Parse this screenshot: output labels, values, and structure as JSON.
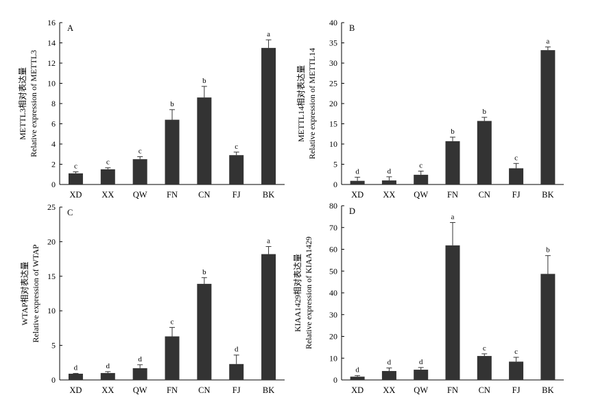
{
  "chart_data": [
    {
      "type": "bar",
      "panel_label": "A",
      "categories": [
        "XD",
        "XX",
        "QW",
        "FN",
        "CN",
        "FJ",
        "BK"
      ],
      "values": [
        1.1,
        1.5,
        2.5,
        6.4,
        8.6,
        2.9,
        13.5
      ],
      "errors": [
        0.15,
        0.15,
        0.25,
        1.0,
        1.1,
        0.3,
        0.8
      ],
      "significance": [
        "c",
        "c",
        "c",
        "b",
        "b",
        "c",
        "a"
      ],
      "ylabel": [
        "METTL3相对表达量",
        "Relative expression of METTL3"
      ],
      "ylim": [
        0,
        16
      ],
      "yticks": [
        0,
        2,
        4,
        6,
        8,
        10,
        12,
        14,
        16
      ]
    },
    {
      "type": "bar",
      "panel_label": "B",
      "categories": [
        "XD",
        "XX",
        "QW",
        "FN",
        "CN",
        "FJ",
        "BK"
      ],
      "values": [
        0.9,
        1.0,
        2.4,
        10.7,
        15.7,
        4.0,
        33.2
      ],
      "errors": [
        0.9,
        0.9,
        0.9,
        1.0,
        0.9,
        1.2,
        0.8
      ],
      "significance": [
        "d",
        "d",
        "c",
        "b",
        "b",
        "c",
        "a"
      ],
      "ylabel": [
        "METTL14相对表达量",
        "Relative expression of METTL14"
      ],
      "ylim": [
        0,
        40
      ],
      "yticks": [
        0,
        5,
        10,
        15,
        20,
        25,
        30,
        35,
        40
      ]
    },
    {
      "type": "bar",
      "panel_label": "C",
      "categories": [
        "XD",
        "XX",
        "QW",
        "FN",
        "CN",
        "FJ",
        "BK"
      ],
      "values": [
        0.9,
        1.0,
        1.7,
        6.3,
        13.9,
        2.3,
        18.2
      ],
      "errors": [
        0.05,
        0.2,
        0.5,
        1.3,
        0.9,
        1.3,
        1.1
      ],
      "significance": [
        "d",
        "d",
        "d",
        "c",
        "b",
        "d",
        "a"
      ],
      "ylabel": [
        "WTAP相对表达量",
        "Relative expression of WTAP"
      ],
      "ylim": [
        0,
        25
      ],
      "yticks": [
        0,
        5,
        10,
        15,
        20,
        25
      ]
    },
    {
      "type": "bar",
      "panel_label": "D",
      "categories": [
        "XD",
        "XX",
        "QW",
        "FN",
        "CN",
        "FJ",
        "BK"
      ],
      "values": [
        1.5,
        4.1,
        4.7,
        61.8,
        11.0,
        8.4,
        48.7
      ],
      "errors": [
        0.5,
        1.4,
        1.0,
        10.5,
        1.0,
        2.0,
        8.4
      ],
      "significance": [
        "d",
        "d",
        "d",
        "a",
        "c",
        "c",
        "b"
      ],
      "ylabel": [
        "KIAA1429相对表达量",
        "Relative expression of KIAA1429"
      ],
      "ylim": [
        0,
        80
      ],
      "yticks": [
        0,
        10,
        20,
        30,
        40,
        50,
        60,
        70,
        80
      ]
    }
  ],
  "colors": {
    "bar": "#333333",
    "axis": "#000000",
    "text": "#000000"
  }
}
